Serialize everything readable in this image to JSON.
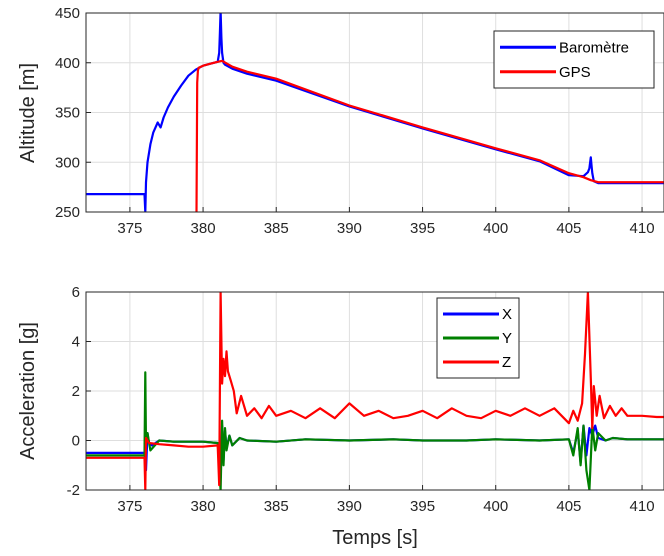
{
  "chart_data": [
    {
      "type": "line",
      "title": "",
      "xlabel": "",
      "ylabel": "Altitude [m]",
      "xlim": [
        372,
        411.5
      ],
      "ylim": [
        250,
        450
      ],
      "xticks": [
        "375",
        "380",
        "385",
        "390",
        "395",
        "400",
        "405",
        "410"
      ],
      "yticks": [
        "250",
        "300",
        "350",
        "400",
        "450"
      ],
      "grid": true,
      "legend": "top-right",
      "series": [
        {
          "name": "Baromètre",
          "color": "#0000ff",
          "x": [
            372,
            376,
            376.05,
            376.1,
            376.2,
            376.4,
            376.6,
            376.9,
            377.1,
            377.3,
            377.6,
            378,
            378.5,
            379,
            379.5,
            380,
            380.5,
            381,
            381.1,
            381.15,
            381.2,
            381.25,
            381.3,
            381.35,
            381.4,
            381.5,
            382,
            383,
            385,
            390,
            395,
            400,
            403,
            405,
            406,
            406.3,
            406.4,
            406.5,
            406.55,
            406.6,
            406.7,
            407,
            408,
            410,
            411.5
          ],
          "y": [
            268,
            268,
            250,
            280,
            300,
            318,
            330,
            340,
            335,
            345,
            355,
            366,
            377,
            387,
            393,
            397,
            399,
            401,
            410,
            430,
            452,
            425,
            410,
            405,
            400,
            398,
            394,
            389,
            382,
            356,
            334,
            313,
            301,
            287,
            286,
            290,
            294,
            305,
            296,
            289,
            281,
            279,
            279,
            279,
            279
          ]
        },
        {
          "name": "GPS",
          "color": "#ff0000",
          "x": [
            379.55,
            379.6,
            379.65,
            379.7,
            380,
            380.5,
            381,
            381.3,
            382,
            383,
            385,
            390,
            395,
            400,
            403,
            405,
            406,
            406.5,
            407,
            408,
            410,
            411.5
          ],
          "y": [
            250,
            380,
            392,
            395,
            397,
            399,
            401,
            402,
            396,
            391,
            384,
            357,
            335,
            314,
            302,
            289,
            285,
            282,
            280,
            280,
            280,
            280
          ]
        }
      ]
    },
    {
      "type": "line",
      "title": "",
      "xlabel": "Temps [s]",
      "ylabel": "Acceleration [g]",
      "xlim": [
        372,
        411.5
      ],
      "ylim": [
        -2,
        6
      ],
      "xticks": [
        "375",
        "380",
        "385",
        "390",
        "395",
        "400",
        "405",
        "410"
      ],
      "yticks": [
        "-2",
        "0",
        "2",
        "4",
        "6"
      ],
      "grid": true,
      "legend": "top-center",
      "series": [
        {
          "name": "X",
          "color": "#0000ff",
          "x": [
            372,
            376,
            376.1,
            376.2,
            376.3,
            376.5,
            377,
            378,
            380,
            381,
            381.2,
            381.3,
            381.4,
            381.5,
            381.6,
            381.8,
            382,
            382.5,
            383,
            385,
            387,
            390,
            393,
            395,
            398,
            400,
            403,
            405,
            405.3,
            405.6,
            405.8,
            406,
            406.2,
            406.4,
            406.6,
            406.8,
            407,
            407.5,
            408,
            409,
            410,
            411.5
          ],
          "y": [
            -0.5,
            -0.5,
            -1.2,
            0.3,
            -0.1,
            -0.2,
            0.0,
            -0.05,
            -0.05,
            -0.1,
            -1.5,
            0.6,
            -0.8,
            0.4,
            -0.3,
            0.2,
            -0.2,
            0.1,
            0.0,
            -0.05,
            0.05,
            0.0,
            0.05,
            0.0,
            0.0,
            0.05,
            0.0,
            0.05,
            -0.5,
            0.4,
            -0.9,
            0.6,
            -0.6,
            0.5,
            0.2,
            0.6,
            0.1,
            0.0,
            0.1,
            0.05,
            0.05,
            0.05
          ]
        },
        {
          "name": "Y",
          "color": "#008000",
          "x": [
            372,
            376,
            376.05,
            376.1,
            376.2,
            376.4,
            377,
            378,
            380,
            381,
            381.2,
            381.3,
            381.4,
            381.5,
            381.6,
            381.8,
            382,
            382.5,
            383,
            385,
            387,
            390,
            393,
            395,
            398,
            400,
            403,
            405,
            405.3,
            405.6,
            405.8,
            406,
            406.2,
            406.4,
            406.6,
            406.8,
            407,
            407.5,
            408,
            409,
            410,
            411.5
          ],
          "y": [
            -0.6,
            -0.6,
            2.75,
            -0.2,
            0.3,
            -0.4,
            0.0,
            -0.05,
            -0.05,
            -0.1,
            -2.0,
            0.8,
            -1.0,
            0.5,
            -0.4,
            0.2,
            -0.2,
            0.1,
            0.0,
            -0.05,
            0.05,
            0.0,
            0.05,
            0.0,
            0.0,
            0.05,
            0.0,
            0.05,
            -0.6,
            0.5,
            -1.0,
            0.6,
            -1.2,
            -2.0,
            0.6,
            -0.4,
            0.3,
            0.0,
            0.1,
            0.05,
            0.05,
            0.05
          ]
        },
        {
          "name": "Z",
          "color": "#ff0000",
          "x": [
            372,
            376,
            376.05,
            376.1,
            376.3,
            377,
            378,
            379,
            380,
            381,
            381.1,
            381.2,
            381.3,
            381.4,
            381.5,
            381.6,
            381.7,
            381.9,
            382.1,
            382.3,
            382.6,
            383,
            383.5,
            384,
            384.5,
            385,
            386,
            387,
            388,
            389,
            390,
            391,
            392,
            393,
            394,
            395,
            396,
            397,
            398,
            399,
            400,
            401,
            402,
            403,
            404,
            405,
            405.3,
            405.6,
            405.9,
            406.1,
            406.3,
            406.5,
            406.6,
            406.7,
            406.9,
            407.1,
            407.4,
            407.8,
            408.2,
            408.6,
            409,
            410,
            411,
            411.5
          ],
          "y": [
            -0.7,
            -0.7,
            -2.0,
            0.1,
            -0.1,
            -0.15,
            -0.2,
            -0.25,
            -0.25,
            -0.2,
            -1.8,
            6.0,
            2.3,
            3.3,
            2.6,
            3.6,
            2.8,
            2.4,
            2.0,
            1.1,
            1.8,
            1.0,
            1.3,
            0.9,
            1.4,
            1.0,
            1.2,
            0.9,
            1.3,
            0.9,
            1.5,
            1.0,
            1.2,
            0.9,
            1.0,
            1.2,
            0.9,
            1.3,
            1.0,
            0.9,
            1.2,
            1.0,
            1.3,
            1.0,
            1.3,
            0.7,
            1.2,
            0.8,
            1.5,
            3.5,
            6.0,
            2.5,
            0.5,
            2.2,
            1.0,
            1.8,
            0.9,
            1.4,
            1.0,
            1.3,
            1.0,
            1.0,
            0.95,
            0.95
          ]
        }
      ]
    }
  ]
}
